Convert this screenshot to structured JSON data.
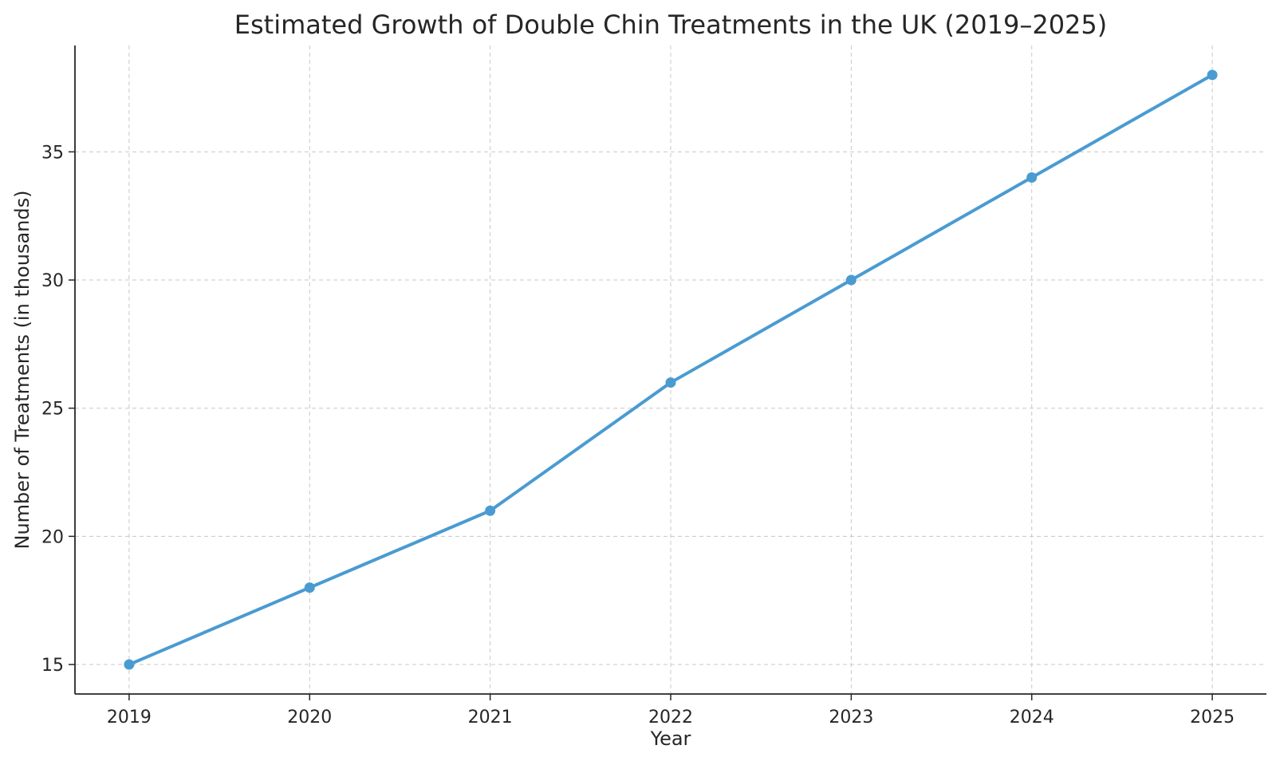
{
  "chart_data": {
    "type": "line",
    "title": "Estimated Growth of Double Chin Treatments in the UK (2019–2025)",
    "xlabel": "Year",
    "ylabel": "Number of Treatments (in thousands)",
    "x": [
      2019,
      2020,
      2021,
      2022,
      2023,
      2024,
      2025
    ],
    "series": [
      {
        "values": [
          15,
          18,
          21,
          26,
          30,
          34,
          38
        ],
        "color": "#4a9bd1",
        "marker": "circle"
      }
    ],
    "xlim": [
      2018.7,
      2025.3
    ],
    "ylim": [
      13.85,
      39.15
    ],
    "x_ticks": [
      "2019",
      "2020",
      "2021",
      "2022",
      "2023",
      "2024",
      "2025"
    ],
    "y_ticks": [
      "15",
      "20",
      "25",
      "30",
      "35"
    ],
    "grid": true,
    "legend": "none"
  }
}
